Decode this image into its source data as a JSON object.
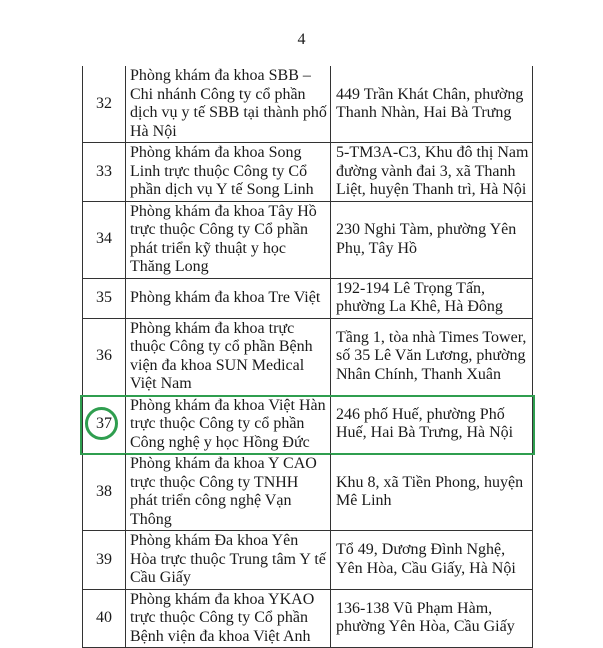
{
  "page_number": "4",
  "highlight_color": "#2f9e4f",
  "rows": [
    {
      "no": "32",
      "name": "Phòng khám đa khoa SBB – Chi nhánh Công ty cổ phần dịch vụ y tế SBB tại thành phố Hà Nội",
      "address": "449 Trần Khát Chân, phường Thanh Nhàn, Hai Bà Trưng"
    },
    {
      "no": "33",
      "name": "Phòng khám đa khoa Song Linh trực thuộc Công ty Cổ phần dịch vụ Y tế Song Linh",
      "address": "5-TM3A-C3, Khu đô thị Nam đường vành đai 3, xã Thanh Liệt, huyện Thanh trì, Hà Nội"
    },
    {
      "no": "34",
      "name": "Phòng khám đa khoa Tây Hồ trực thuộc Công ty Cổ phần phát triển kỹ thuật y học Thăng Long",
      "address": "230 Nghi Tàm, phường Yên Phụ, Tây Hồ"
    },
    {
      "no": "35",
      "name": "Phòng khám đa khoa Tre Việt",
      "address": "192-194 Lê Trọng Tấn, phường La Khê, Hà Đông"
    },
    {
      "no": "36",
      "name": "Phòng khám đa khoa trực thuộc Công ty cổ phần Bệnh viện đa khoa SUN Medical Việt Nam",
      "address": "Tầng 1, tòa nhà Times Tower, số 35 Lê Văn Lương, phường Nhân Chính, Thanh Xuân"
    },
    {
      "no": "37",
      "name": "Phòng khám đa khoa Việt Hàn trực thuộc Công ty cổ phần Công nghệ y học Hồng Đức",
      "address": "246 phố Huế, phường Phố Huế, Hai Bà Trưng, Hà Nội"
    },
    {
      "no": "38",
      "name": "Phòng khám đa khoa Y CAO trực thuộc Công ty TNHH phát triển công nghệ Vạn Thông",
      "address": "Khu 8, xã Tiền Phong, huyện Mê Linh"
    },
    {
      "no": "39",
      "name": "Phòng khám Đa khoa Yên Hòa trực thuộc Trung tâm Y tế Cầu Giấy",
      "address": "Tổ 49, Dương Đình Nghệ, Yên Hòa, Cầu Giấy, Hà Nội"
    },
    {
      "no": "40",
      "name": "Phòng khám đa khoa YKAO trực thuộc Công ty Cổ phần Bệnh viện đa khoa Việt Anh",
      "address": "136-138 Vũ Phạm Hàm, phường Yên Hòa, Cầu Giấy"
    }
  ]
}
